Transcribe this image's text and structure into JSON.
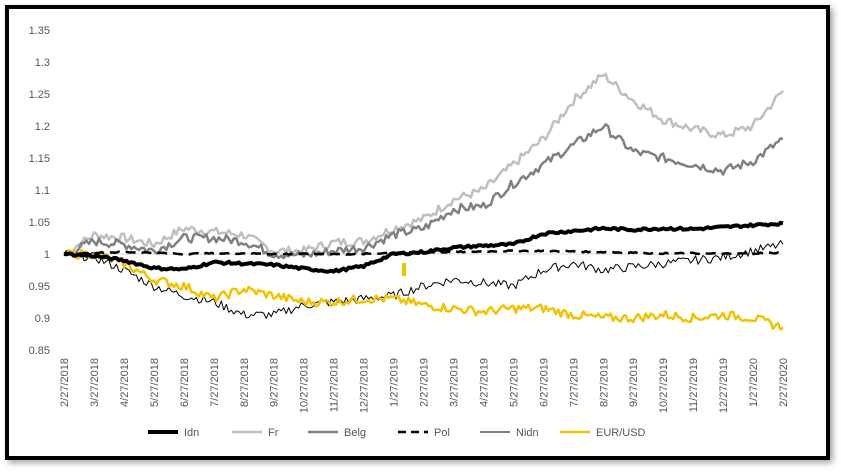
{
  "chart_data": {
    "type": "line",
    "ylim": [
      0.85,
      1.35
    ],
    "y_ticks": [
      "0.85",
      "0.9",
      "0.95",
      "1",
      "1.05",
      "1.1",
      "1.15",
      "1.2",
      "1.25",
      "1.3",
      "1.35"
    ],
    "x_ticks": [
      "2/27/2018",
      "3/27/2018",
      "4/27/2018",
      "5/27/2018",
      "6/27/2018",
      "7/27/2018",
      "8/27/2018",
      "9/27/2018",
      "10/27/2018",
      "11/27/2018",
      "12/27/2018",
      "1/27/2019",
      "2/27/2019",
      "3/27/2019",
      "4/27/2019",
      "5/27/2019",
      "6/27/2019",
      "7/27/2019",
      "8/27/2019",
      "9/27/2019",
      "10/27/2019",
      "11/27/2019",
      "12/27/2019",
      "1/27/2020",
      "2/27/2020"
    ],
    "legend_position": "bottom",
    "grid": false,
    "reference_line": 1,
    "series": [
      {
        "name": "Idn",
        "color": "#000000",
        "style": "solid",
        "width": 4,
        "values": [
          1.0,
          0.997,
          0.99,
          0.978,
          0.976,
          0.987,
          0.985,
          0.983,
          0.977,
          0.973,
          0.981,
          1.0,
          1.003,
          1.01,
          1.013,
          1.015,
          1.032,
          1.036,
          1.04,
          1.038,
          1.04,
          1.039,
          1.042,
          1.045,
          1.048
        ]
      },
      {
        "name": "Fr",
        "color": "#bfbfbf",
        "style": "solid",
        "width": 2.5,
        "values": [
          1.0,
          1.03,
          1.025,
          1.015,
          1.04,
          1.035,
          1.03,
          1.005,
          1.005,
          1.018,
          1.02,
          1.04,
          1.055,
          1.085,
          1.1,
          1.14,
          1.18,
          1.24,
          1.28,
          1.24,
          1.21,
          1.195,
          1.185,
          1.2,
          1.255
        ]
      },
      {
        "name": "Belg",
        "color": "#808080",
        "style": "solid",
        "width": 2.5,
        "values": [
          1.0,
          1.02,
          1.015,
          1.005,
          1.025,
          1.025,
          1.02,
          1.0,
          0.998,
          1.005,
          1.01,
          1.03,
          1.04,
          1.07,
          1.075,
          1.11,
          1.14,
          1.17,
          1.2,
          1.16,
          1.15,
          1.14,
          1.13,
          1.145,
          1.18
        ]
      },
      {
        "name": "Pol",
        "color": "#000000",
        "style": "dashed",
        "width": 2.5,
        "values": [
          1.0,
          1.002,
          1.003,
          1.002,
          1.0,
          1.001,
          1.001,
          1.0,
          1.0,
          1.0,
          1.0,
          1.002,
          1.003,
          1.003,
          1.004,
          1.005,
          1.005,
          1.004,
          1.003,
          1.002,
          1.001,
          1.001,
          1.0,
          1.001,
          1.002
        ]
      },
      {
        "name": "Nidn",
        "color": "#000000",
        "style": "solid",
        "width": 1,
        "values": [
          1.0,
          0.995,
          0.975,
          0.95,
          0.935,
          0.925,
          0.905,
          0.905,
          0.92,
          0.925,
          0.93,
          0.935,
          0.95,
          0.96,
          0.955,
          0.95,
          0.975,
          0.985,
          0.975,
          0.98,
          0.985,
          0.99,
          0.995,
          1.005,
          1.015
        ]
      },
      {
        "name": "EUR/USD",
        "color": "#f2c200",
        "style": "solid",
        "width": 2.5,
        "values": [
          1.0,
          1.0,
          0.985,
          0.96,
          0.95,
          0.93,
          0.945,
          0.935,
          0.925,
          0.925,
          0.93,
          0.93,
          0.92,
          0.915,
          0.91,
          0.915,
          0.915,
          0.905,
          0.9,
          0.9,
          0.905,
          0.9,
          0.905,
          0.9,
          0.885
        ]
      }
    ]
  }
}
